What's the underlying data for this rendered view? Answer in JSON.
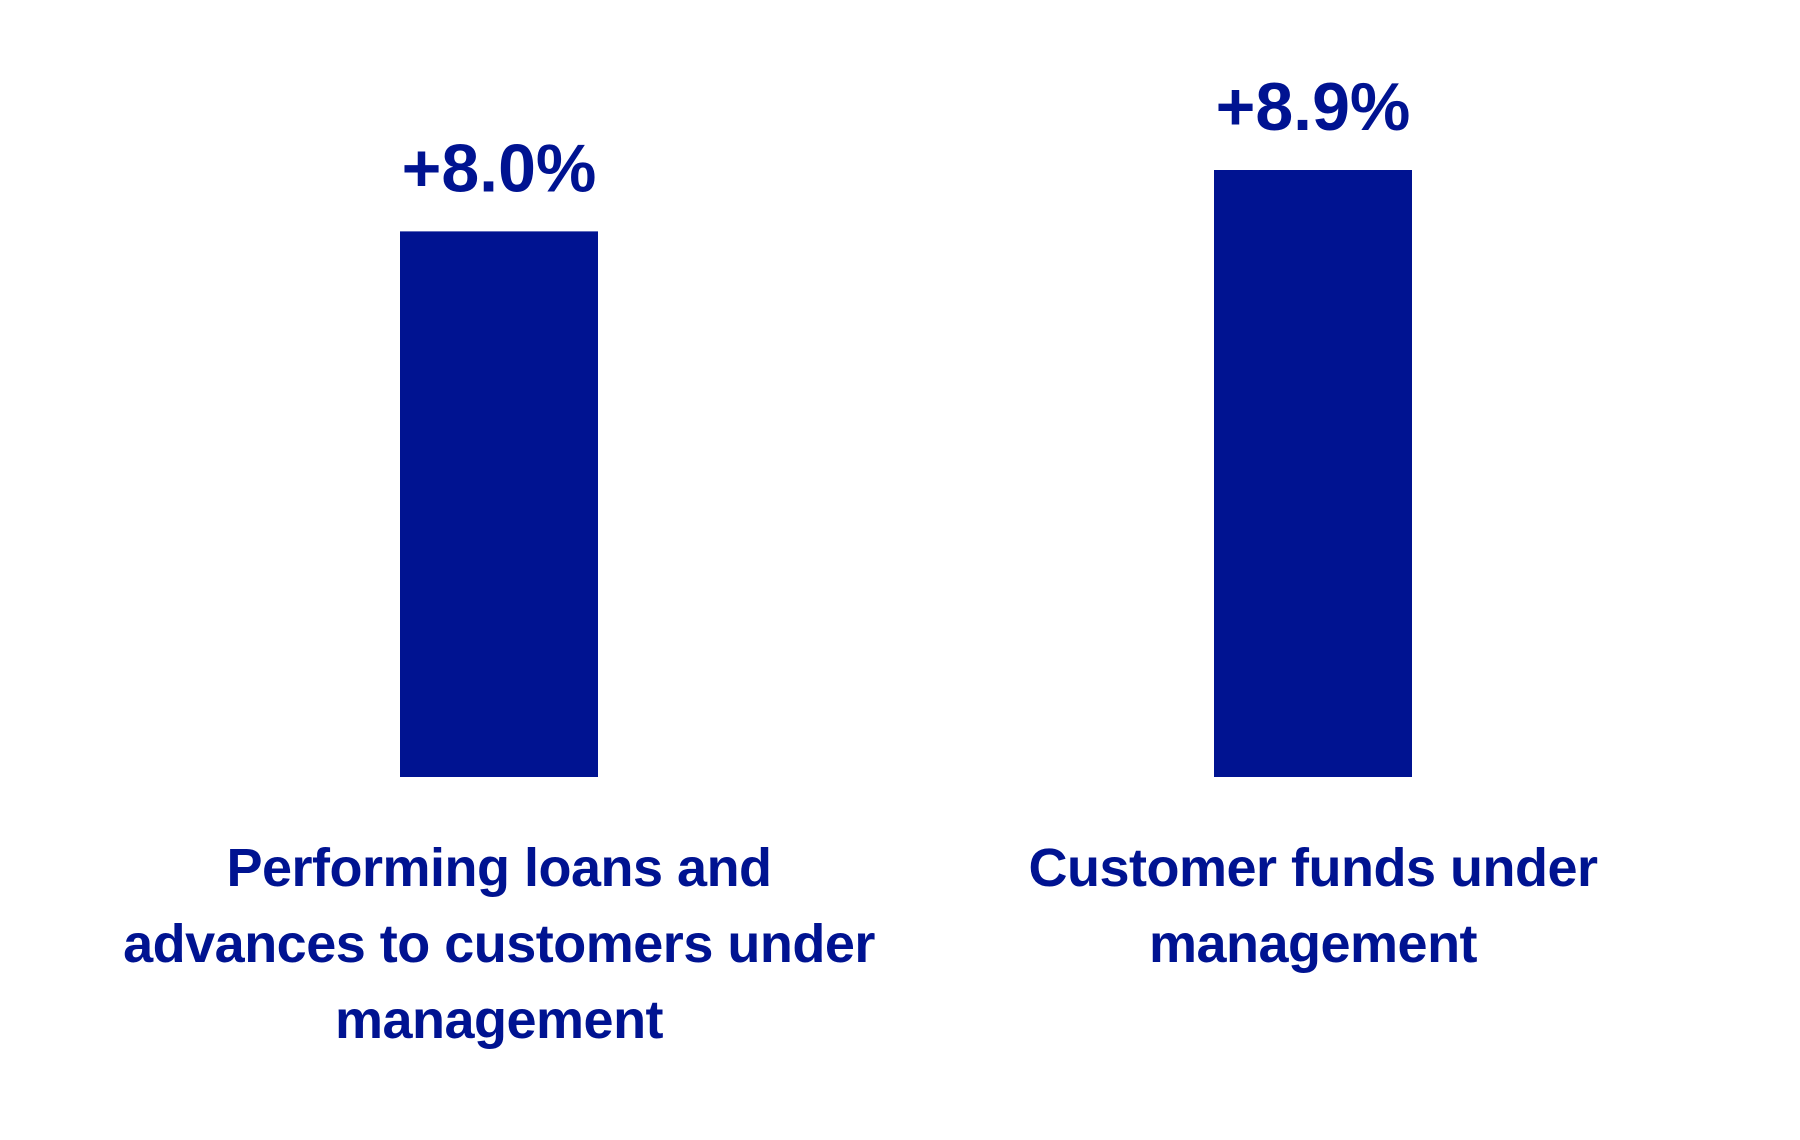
{
  "chart_data": {
    "type": "bar",
    "categories": [
      "Performing loans and advances to customers under management",
      "Customer funds under management"
    ],
    "values": [
      8.0,
      8.9
    ],
    "value_labels": [
      "+8.0%",
      "+8.9%"
    ],
    "color": "#001391"
  }
}
